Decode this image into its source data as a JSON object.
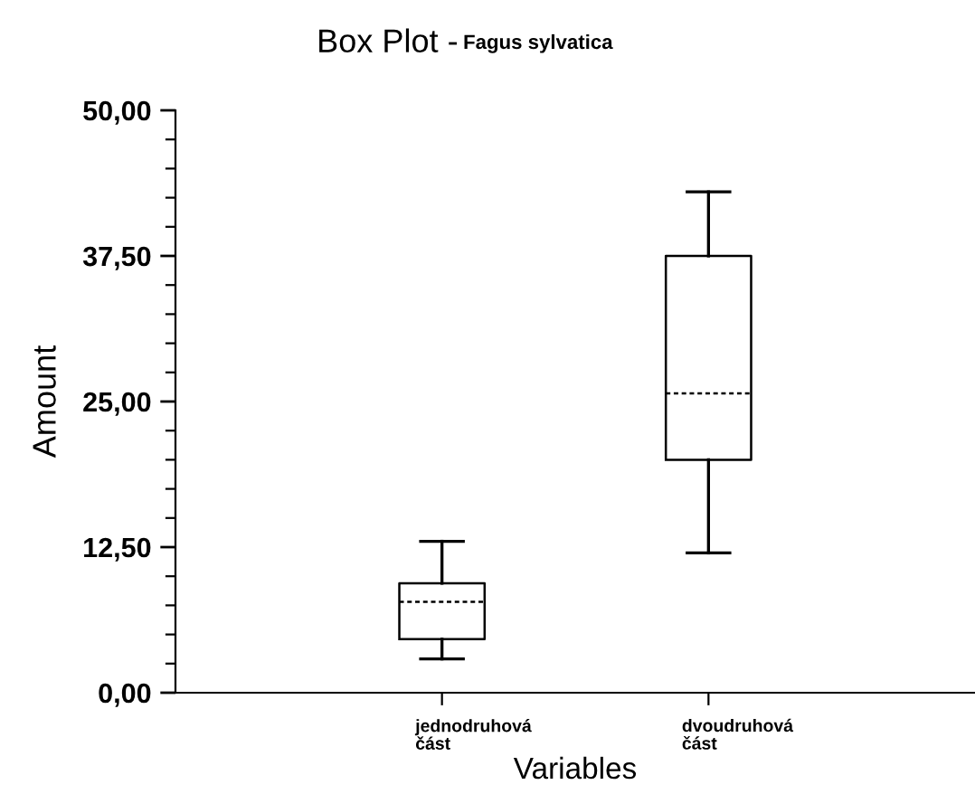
{
  "chart_data": {
    "type": "box",
    "title": "Box Plot -",
    "subtitle": "Fagus sylvatica",
    "xlabel": "Variables",
    "ylabel": "Amount",
    "categories": [
      "jednodruhová část",
      "dvoudruhová část"
    ],
    "boxes": [
      {
        "low": 2.9,
        "q1": 4.6,
        "median": 7.8,
        "q3": 9.4,
        "high": 13.0
      },
      {
        "low": 12.0,
        "q1": 20.0,
        "median": 25.7,
        "q3": 37.5,
        "high": 43.0
      }
    ],
    "ylim": [
      0,
      50
    ],
    "yticks": [
      {
        "value": 0,
        "label": "0,00"
      },
      {
        "value": 2.5,
        "label": null
      },
      {
        "value": 5,
        "label": null
      },
      {
        "value": 7.5,
        "label": null
      },
      {
        "value": 10,
        "label": null
      },
      {
        "value": 12.5,
        "label": "12,50"
      },
      {
        "value": 15,
        "label": null
      },
      {
        "value": 17.5,
        "label": null
      },
      {
        "value": 20,
        "label": null
      },
      {
        "value": 22.5,
        "label": null
      },
      {
        "value": 25,
        "label": "25,00"
      },
      {
        "value": 27.5,
        "label": null
      },
      {
        "value": 30,
        "label": null
      },
      {
        "value": 32.5,
        "label": null
      },
      {
        "value": 35,
        "label": null
      },
      {
        "value": 37.5,
        "label": "37,50"
      },
      {
        "value": 40,
        "label": null
      },
      {
        "value": 42.5,
        "label": null
      },
      {
        "value": 45,
        "label": null
      },
      {
        "value": 47.5,
        "label": null
      },
      {
        "value": 50,
        "label": "50,00"
      }
    ],
    "grid": false
  }
}
